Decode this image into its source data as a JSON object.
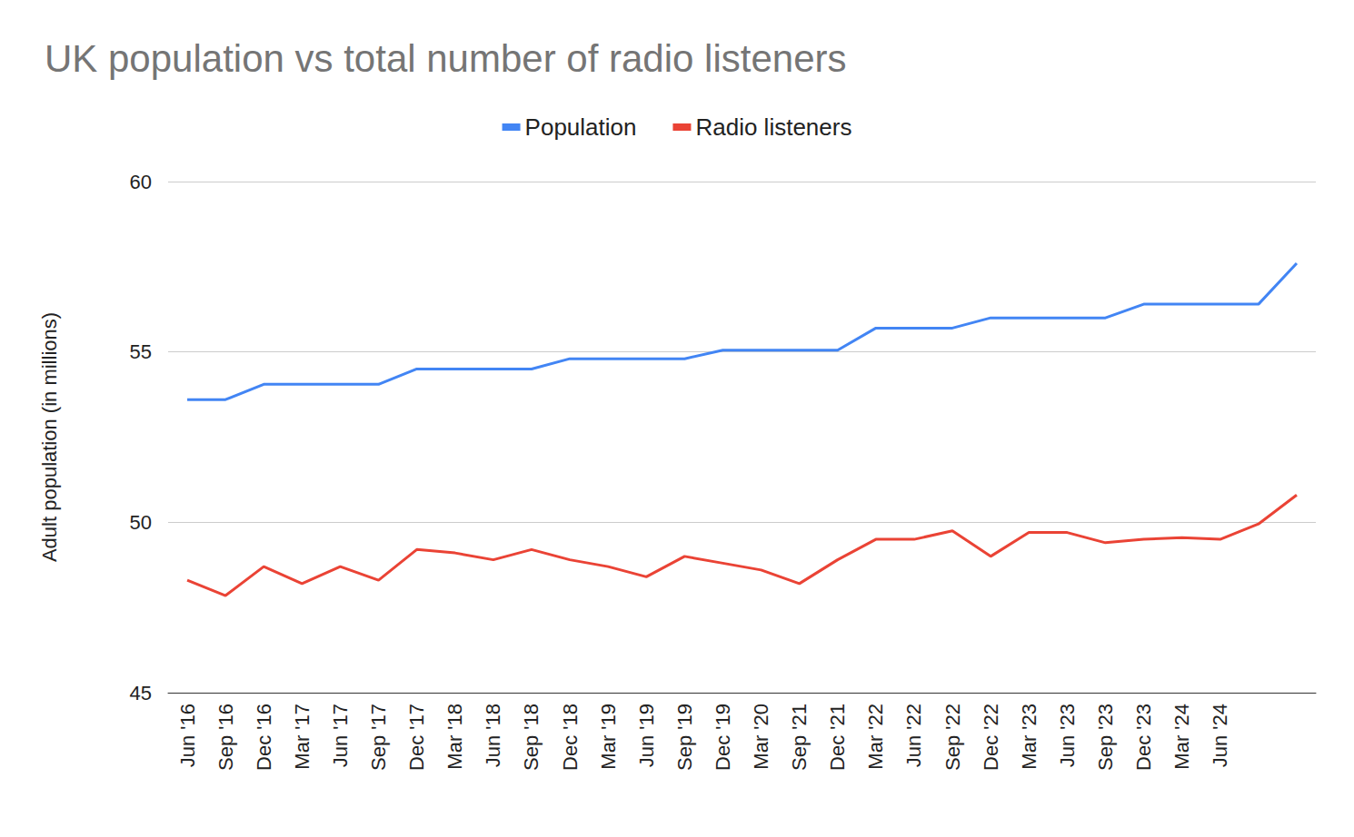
{
  "chart_data": {
    "type": "line",
    "title": "UK population vs total number of radio listeners",
    "y_label": "Adult population (in millions)",
    "categories": [
      "Jun '16",
      "Sep '16",
      "Dec '16",
      "Mar '17",
      "Jun '17",
      "Sep '17",
      "Dec '17",
      "Mar '18",
      "Jun '18",
      "Sep '18",
      "Dec '18",
      "Mar '19",
      "Jun '19",
      "Sep '19",
      "Dec '19",
      "Mar '20",
      "Sep '21",
      "Dec '21",
      "Mar '22",
      "Jun '22",
      "Sep '22",
      "Dec '22",
      "Mar '23",
      "Jun '23",
      "Sep '23",
      "Dec '23",
      "Mar '24",
      "Jun '24",
      null,
      null
    ],
    "series": [
      {
        "name": "Population",
        "color": "#4285f4",
        "values": [
          53.6,
          53.6,
          54.05,
          54.05,
          54.05,
          54.05,
          54.5,
          54.5,
          54.5,
          54.5,
          54.8,
          54.8,
          54.8,
          54.8,
          55.05,
          55.05,
          55.05,
          55.05,
          55.7,
          55.7,
          55.7,
          56.0,
          56.0,
          56.0,
          56.0,
          56.4,
          56.4,
          56.4,
          56.4,
          57.6
        ]
      },
      {
        "name": "Radio listeners",
        "color": "#ea4335",
        "values": [
          48.3,
          47.85,
          48.7,
          48.2,
          48.7,
          48.3,
          49.2,
          49.1,
          48.9,
          49.2,
          48.9,
          48.7,
          48.4,
          49.0,
          48.8,
          48.6,
          48.2,
          48.9,
          49.5,
          49.5,
          49.75,
          49.0,
          49.7,
          49.7,
          49.4,
          49.5,
          49.55,
          49.5,
          49.95,
          50.8
        ]
      }
    ],
    "ylim": [
      45,
      60
    ],
    "yticks": [
      45,
      50,
      55,
      60
    ],
    "grid": true,
    "legend": "top"
  }
}
